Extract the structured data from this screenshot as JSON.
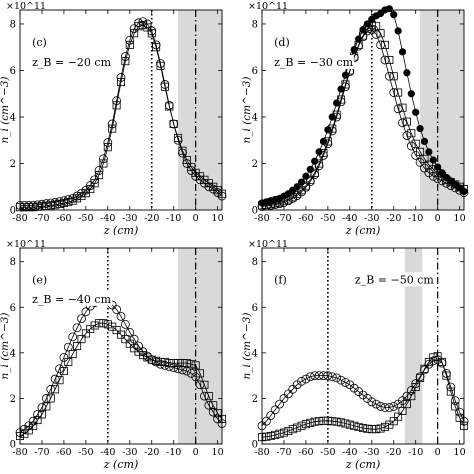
{
  "chart_data": [
    {
      "panel": "(c)",
      "type": "line",
      "annotation": "z_B = −20 cm",
      "exponent_label": "×10^11",
      "xlabel": "z (cm)",
      "ylabel": "n_i (cm^−3)",
      "xlim": [
        -80,
        12
      ],
      "ylim": [
        0,
        8.6
      ],
      "xticks": [
        -80,
        -70,
        -60,
        -50,
        -40,
        -30,
        -20,
        -10,
        0,
        10
      ],
      "yticks": [
        0,
        2,
        4,
        6,
        8
      ],
      "shaded_region": [
        -8,
        12
      ],
      "vline_dotted": -20,
      "vline_dashdot": 0,
      "x": [
        -80,
        -78,
        -76,
        -74,
        -72,
        -70,
        -68,
        -66,
        -64,
        -62,
        -60,
        -58,
        -56,
        -54,
        -52,
        -50,
        -48,
        -46,
        -44,
        -42,
        -40,
        -38,
        -36,
        -34,
        -32,
        -30,
        -28,
        -26,
        -24,
        -22,
        -20,
        -18,
        -16,
        -14,
        -12,
        -10,
        -8,
        -6,
        -4,
        -2,
        0,
        2,
        4,
        6,
        8,
        10,
        12
      ],
      "series": [
        {
          "marker": "circle",
          "values": [
            0.2,
            0.2,
            0.2,
            0.2,
            0.22,
            0.25,
            0.28,
            0.3,
            0.33,
            0.36,
            0.4,
            0.45,
            0.5,
            0.6,
            0.72,
            0.85,
            1.05,
            1.3,
            1.7,
            2.2,
            2.9,
            3.7,
            4.7,
            5.7,
            6.6,
            7.3,
            7.8,
            8.05,
            8.1,
            8.0,
            7.7,
            7.1,
            6.3,
            5.4,
            4.5,
            3.7,
            3.0,
            2.45,
            2.0,
            1.7,
            1.45,
            1.3,
            1.15,
            1.0,
            0.9,
            0.75,
            0.6
          ]
        },
        {
          "marker": "square",
          "values": [
            0.12,
            0.12,
            0.12,
            0.12,
            0.14,
            0.16,
            0.18,
            0.2,
            0.23,
            0.26,
            0.3,
            0.34,
            0.4,
            0.5,
            0.6,
            0.72,
            0.9,
            1.15,
            1.5,
            2.0,
            2.7,
            3.5,
            4.5,
            5.5,
            6.4,
            7.1,
            7.6,
            7.9,
            7.95,
            7.85,
            7.6,
            7.0,
            6.2,
            5.3,
            4.45,
            3.7,
            3.1,
            2.55,
            2.15,
            1.85,
            1.6,
            1.45,
            1.3,
            1.15,
            1.0,
            0.85,
            0.7
          ]
        }
      ]
    },
    {
      "panel": "(d)",
      "type": "line",
      "annotation": "z_B = −30 cm",
      "exponent_label": "×10^11",
      "xlabel": "z (cm)",
      "ylabel": "n_i (cm^−3)",
      "xlim": [
        -80,
        12
      ],
      "ylim": [
        0,
        8.6
      ],
      "xticks": [
        -80,
        -70,
        -60,
        -50,
        -40,
        -30,
        -20,
        -10,
        0,
        10
      ],
      "yticks": [
        0,
        2,
        4,
        6,
        8
      ],
      "shaded_region": [
        -8,
        12
      ],
      "vline_dotted": -30,
      "vline_dashdot": 0,
      "x": [
        -80,
        -78,
        -76,
        -74,
        -72,
        -70,
        -68,
        -66,
        -64,
        -62,
        -60,
        -58,
        -56,
        -54,
        -52,
        -50,
        -48,
        -46,
        -44,
        -42,
        -40,
        -38,
        -36,
        -34,
        -32,
        -30,
        -28,
        -26,
        -24,
        -22,
        -20,
        -18,
        -16,
        -14,
        -12,
        -10,
        -8,
        -6,
        -4,
        -2,
        0,
        2,
        4,
        6,
        8,
        10,
        12
      ],
      "series": [
        {
          "marker": "filled-circle",
          "values": [
            0.3,
            0.35,
            0.4,
            0.45,
            0.5,
            0.6,
            0.7,
            0.85,
            1.0,
            1.2,
            1.45,
            1.75,
            2.1,
            2.5,
            2.95,
            3.45,
            4.0,
            4.6,
            5.2,
            5.8,
            6.4,
            6.9,
            7.35,
            7.75,
            8.0,
            8.2,
            8.35,
            8.45,
            8.6,
            8.65,
            8.4,
            7.7,
            6.8,
            5.9,
            5.0,
            4.2,
            3.5,
            2.95,
            2.5,
            2.15,
            1.85,
            1.6,
            1.4,
            1.25,
            1.1,
            0.95,
            0.8
          ]
        },
        {
          "marker": "square",
          "values": [
            0.2,
            0.22,
            0.25,
            0.28,
            0.32,
            0.38,
            0.45,
            0.55,
            0.7,
            0.85,
            1.05,
            1.3,
            1.6,
            2.0,
            2.45,
            2.95,
            3.5,
            4.1,
            4.75,
            5.4,
            6.0,
            6.6,
            7.1,
            7.5,
            7.8,
            7.95,
            7.9,
            7.6,
            7.1,
            6.45,
            5.75,
            5.05,
            4.4,
            3.8,
            3.3,
            2.85,
            2.5,
            2.2,
            1.95,
            1.75,
            1.6,
            1.45,
            1.3,
            1.2,
            1.1,
            1.0,
            0.9
          ]
        },
        {
          "marker": "circle",
          "values": [
            0.15,
            0.17,
            0.2,
            0.23,
            0.27,
            0.32,
            0.4,
            0.5,
            0.62,
            0.78,
            0.98,
            1.22,
            1.52,
            1.9,
            2.35,
            2.85,
            3.4,
            4.0,
            4.65,
            5.3,
            5.95,
            6.55,
            7.05,
            7.45,
            7.7,
            7.75,
            7.55,
            7.1,
            6.45,
            5.75,
            5.05,
            4.35,
            3.75,
            3.2,
            2.75,
            2.35,
            2.05,
            1.8,
            1.6,
            1.45,
            1.35,
            1.25,
            1.15,
            1.05,
            0.95,
            0.85,
            0.75
          ]
        }
      ]
    },
    {
      "panel": "(e)",
      "type": "line",
      "annotation": "z_B = −40 cm",
      "exponent_label": "×10^11",
      "xlabel": "z (cm)",
      "ylabel": "n_i (cm^−3)",
      "xlim": [
        -80,
        12
      ],
      "ylim": [
        0,
        8.6
      ],
      "xticks": [
        -80,
        -70,
        -60,
        -50,
        -40,
        -30,
        -20,
        -10,
        0,
        10
      ],
      "yticks": [
        0,
        2,
        4,
        6,
        8
      ],
      "shaded_region": [
        -8,
        12
      ],
      "vline_dotted": -40,
      "vline_dashdot": 0,
      "x": [
        -80,
        -78,
        -76,
        -74,
        -72,
        -70,
        -68,
        -66,
        -64,
        -62,
        -60,
        -58,
        -56,
        -54,
        -52,
        -50,
        -48,
        -46,
        -44,
        -42,
        -40,
        -38,
        -36,
        -34,
        -32,
        -30,
        -28,
        -26,
        -24,
        -22,
        -20,
        -18,
        -16,
        -14,
        -12,
        -10,
        -8,
        -6,
        -4,
        -2,
        0,
        2,
        4,
        6,
        8,
        10,
        12
      ],
      "series": [
        {
          "marker": "circle",
          "values": [
            0.5,
            0.65,
            0.8,
            1.0,
            1.3,
            1.6,
            2.0,
            2.4,
            2.85,
            3.3,
            3.8,
            4.25,
            4.7,
            5.1,
            5.5,
            5.8,
            6.05,
            6.2,
            6.3,
            6.3,
            6.25,
            6.1,
            5.9,
            5.6,
            5.25,
            4.9,
            4.6,
            4.3,
            4.05,
            3.85,
            3.7,
            3.6,
            3.5,
            3.45,
            3.4,
            3.35,
            3.3,
            3.25,
            3.2,
            3.1,
            2.95,
            2.6,
            2.1,
            1.7,
            1.4,
            1.1,
            0.9
          ]
        },
        {
          "marker": "square",
          "values": [
            0.35,
            0.45,
            0.6,
            0.8,
            1.05,
            1.3,
            1.65,
            2.0,
            2.4,
            2.8,
            3.2,
            3.6,
            3.95,
            4.3,
            4.6,
            4.85,
            5.05,
            5.2,
            5.3,
            5.3,
            5.25,
            5.15,
            5.0,
            4.8,
            4.6,
            4.4,
            4.2,
            4.05,
            3.9,
            3.8,
            3.7,
            3.65,
            3.6,
            3.6,
            3.55,
            3.55,
            3.55,
            3.55,
            3.55,
            3.5,
            3.45,
            3.1,
            2.6,
            2.1,
            1.7,
            1.35,
            1.1
          ]
        }
      ]
    },
    {
      "panel": "(f)",
      "type": "line",
      "annotation": "z_B = −50 cm",
      "exponent_label": "×10^11",
      "xlabel": "z (cm)",
      "ylabel": "n_i (cm^−3)",
      "xlim": [
        -80,
        12
      ],
      "ylim": [
        0,
        8.6
      ],
      "xticks": [
        -80,
        -70,
        -60,
        -50,
        -40,
        -30,
        -20,
        -10,
        0,
        10
      ],
      "yticks": [
        0,
        2,
        4,
        6,
        8
      ],
      "shaded_region": [
        -15,
        -7
      ],
      "vline_dotted": -50,
      "vline_dashdot": 0,
      "x": [
        -80,
        -78,
        -76,
        -74,
        -72,
        -70,
        -68,
        -66,
        -64,
        -62,
        -60,
        -58,
        -56,
        -54,
        -52,
        -50,
        -48,
        -46,
        -44,
        -42,
        -40,
        -38,
        -36,
        -34,
        -32,
        -30,
        -28,
        -26,
        -24,
        -22,
        -20,
        -18,
        -16,
        -14,
        -12,
        -10,
        -8,
        -6,
        -4,
        -2,
        0,
        2,
        4,
        6,
        8,
        10,
        12
      ],
      "series": [
        {
          "marker": "circle",
          "values": [
            0.8,
            1.0,
            1.25,
            1.5,
            1.75,
            2.0,
            2.2,
            2.4,
            2.6,
            2.75,
            2.85,
            2.95,
            3.0,
            3.0,
            3.0,
            3.0,
            2.95,
            2.9,
            2.8,
            2.7,
            2.6,
            2.45,
            2.3,
            2.15,
            2.0,
            1.85,
            1.75,
            1.65,
            1.6,
            1.6,
            1.65,
            1.75,
            1.9,
            2.1,
            2.35,
            2.65,
            2.95,
            3.25,
            3.5,
            3.65,
            3.7,
            3.55,
            3.1,
            2.5,
            1.9,
            1.4,
            1.0
          ]
        },
        {
          "marker": "square",
          "values": [
            0.3,
            0.32,
            0.35,
            0.4,
            0.45,
            0.5,
            0.57,
            0.65,
            0.72,
            0.8,
            0.87,
            0.93,
            0.98,
            1.0,
            1.02,
            1.02,
            1.0,
            0.98,
            0.95,
            0.9,
            0.85,
            0.8,
            0.75,
            0.7,
            0.67,
            0.65,
            0.65,
            0.68,
            0.75,
            0.85,
            1.0,
            1.2,
            1.45,
            1.75,
            2.1,
            2.5,
            2.9,
            3.3,
            3.6,
            3.8,
            3.85,
            3.6,
            3.0,
            2.3,
            1.65,
            1.15,
            0.8
          ]
        }
      ]
    }
  ]
}
